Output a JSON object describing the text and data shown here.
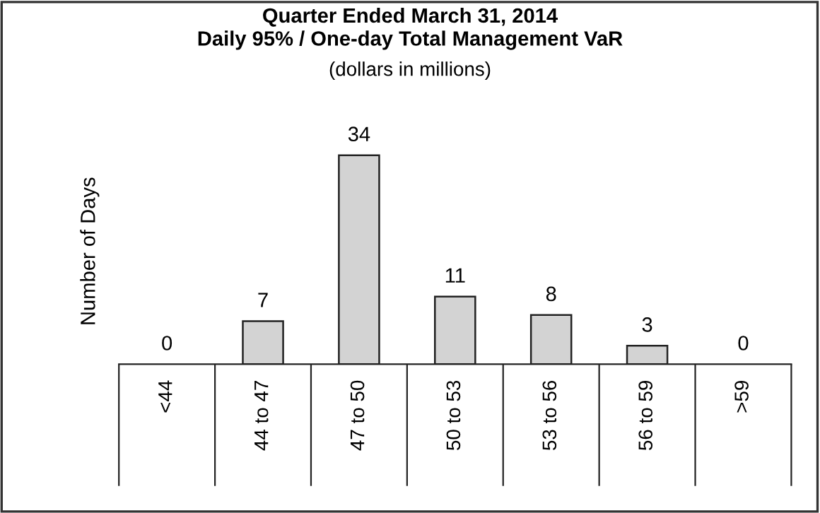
{
  "chart_data": {
    "type": "bar",
    "title": "Quarter Ended March 31, 2014\nDaily 95% / One-day Total Management VaR",
    "subtitle": "(dollars in millions)",
    "ylabel": "Number of Days",
    "categories": [
      "<44",
      "44 to 47",
      "47 to 50",
      "50 to 53",
      "53 to 56",
      "56 to 59",
      ">59"
    ],
    "values": [
      0,
      7,
      34,
      11,
      8,
      3,
      0
    ],
    "color": "#d3d3d3",
    "data_labels": true,
    "grid": false,
    "legend": false
  }
}
